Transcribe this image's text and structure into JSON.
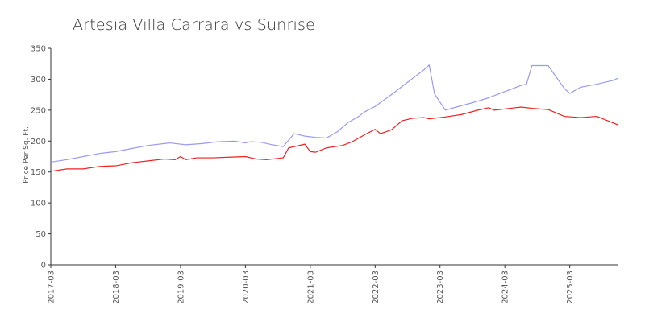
{
  "title": "Artesia Villa Carrara vs Sunrise",
  "chart_data": {
    "type": "line",
    "title": "Artesia Villa Carrara vs Sunrise",
    "xlabel": "",
    "ylabel": "Price Per Sq. Ft.",
    "ylim": [
      0,
      350
    ],
    "yticks": [
      0,
      50,
      100,
      150,
      200,
      250,
      300,
      350
    ],
    "xlim": [
      "2017-03",
      "2025-12"
    ],
    "xticks": [
      "2017-03",
      "2018-03",
      "2019-03",
      "2020-03",
      "2021-03",
      "2022-03",
      "2023-03",
      "2024-03",
      "2025-03"
    ],
    "grid": false,
    "legend": "none",
    "series": [
      {
        "color": "#9a9af0",
        "points": [
          [
            "2017-03",
            166
          ],
          [
            "2017-06",
            170
          ],
          [
            "2017-09",
            175
          ],
          [
            "2017-12",
            180
          ],
          [
            "2018-03",
            183
          ],
          [
            "2018-06",
            188
          ],
          [
            "2018-09",
            193
          ],
          [
            "2018-12",
            196
          ],
          [
            "2019-01",
            197
          ],
          [
            "2019-04",
            194
          ],
          [
            "2019-07",
            196
          ],
          [
            "2019-10",
            199
          ],
          [
            "2020-01",
            200
          ],
          [
            "2020-03",
            197
          ],
          [
            "2020-04",
            199
          ],
          [
            "2020-06",
            198
          ],
          [
            "2020-08",
            194
          ],
          [
            "2020-10",
            191
          ],
          [
            "2020-12",
            212
          ],
          [
            "2021-02",
            208
          ],
          [
            "2021-04",
            206
          ],
          [
            "2021-06",
            205
          ],
          [
            "2021-08",
            215
          ],
          [
            "2021-10",
            230
          ],
          [
            "2021-12",
            240
          ],
          [
            "2022-01",
            247
          ],
          [
            "2022-03",
            256
          ],
          [
            "2022-06",
            275
          ],
          [
            "2022-09",
            295
          ],
          [
            "2022-12",
            315
          ],
          [
            "2023-01",
            323
          ],
          [
            "2023-02",
            276
          ],
          [
            "2023-04",
            250
          ],
          [
            "2023-06",
            255
          ],
          [
            "2023-09",
            262
          ],
          [
            "2023-12",
            270
          ],
          [
            "2024-03",
            280
          ],
          [
            "2024-06",
            290
          ],
          [
            "2024-07",
            292
          ],
          [
            "2024-08",
            322
          ],
          [
            "2024-11",
            322
          ],
          [
            "2025-02",
            285
          ],
          [
            "2025-03",
            277
          ],
          [
            "2025-05",
            287
          ],
          [
            "2025-08",
            292
          ],
          [
            "2025-11",
            298
          ],
          [
            "2025-12",
            302
          ]
        ]
      },
      {
        "color": "#ee2222",
        "points": [
          [
            "2017-03",
            151
          ],
          [
            "2017-06",
            155
          ],
          [
            "2017-09",
            155
          ],
          [
            "2017-12",
            159
          ],
          [
            "2018-03",
            160
          ],
          [
            "2018-06",
            165
          ],
          [
            "2018-09",
            168
          ],
          [
            "2018-12",
            171
          ],
          [
            "2019-02",
            170
          ],
          [
            "2019-03",
            175
          ],
          [
            "2019-04",
            170
          ],
          [
            "2019-06",
            173
          ],
          [
            "2019-09",
            173
          ],
          [
            "2019-12",
            174
          ],
          [
            "2020-03",
            175
          ],
          [
            "2020-05",
            171
          ],
          [
            "2020-07",
            170
          ],
          [
            "2020-10",
            173
          ],
          [
            "2020-11",
            189
          ],
          [
            "2021-02",
            195
          ],
          [
            "2021-03",
            183
          ],
          [
            "2021-04",
            182
          ],
          [
            "2021-06",
            189
          ],
          [
            "2021-09",
            193
          ],
          [
            "2021-11",
            200
          ],
          [
            "2022-01",
            210
          ],
          [
            "2022-03",
            219
          ],
          [
            "2022-04",
            212
          ],
          [
            "2022-06",
            218
          ],
          [
            "2022-08",
            233
          ],
          [
            "2022-10",
            237
          ],
          [
            "2022-12",
            238
          ],
          [
            "2023-01",
            236
          ],
          [
            "2023-04",
            239
          ],
          [
            "2023-07",
            243
          ],
          [
            "2023-10",
            250
          ],
          [
            "2023-12",
            254
          ],
          [
            "2024-01",
            250
          ],
          [
            "2024-03",
            252
          ],
          [
            "2024-06",
            255
          ],
          [
            "2024-08",
            253
          ],
          [
            "2024-11",
            251
          ],
          [
            "2025-02",
            240
          ],
          [
            "2025-05",
            238
          ],
          [
            "2025-08",
            240
          ],
          [
            "2025-10",
            233
          ],
          [
            "2025-12",
            226
          ]
        ]
      }
    ]
  }
}
